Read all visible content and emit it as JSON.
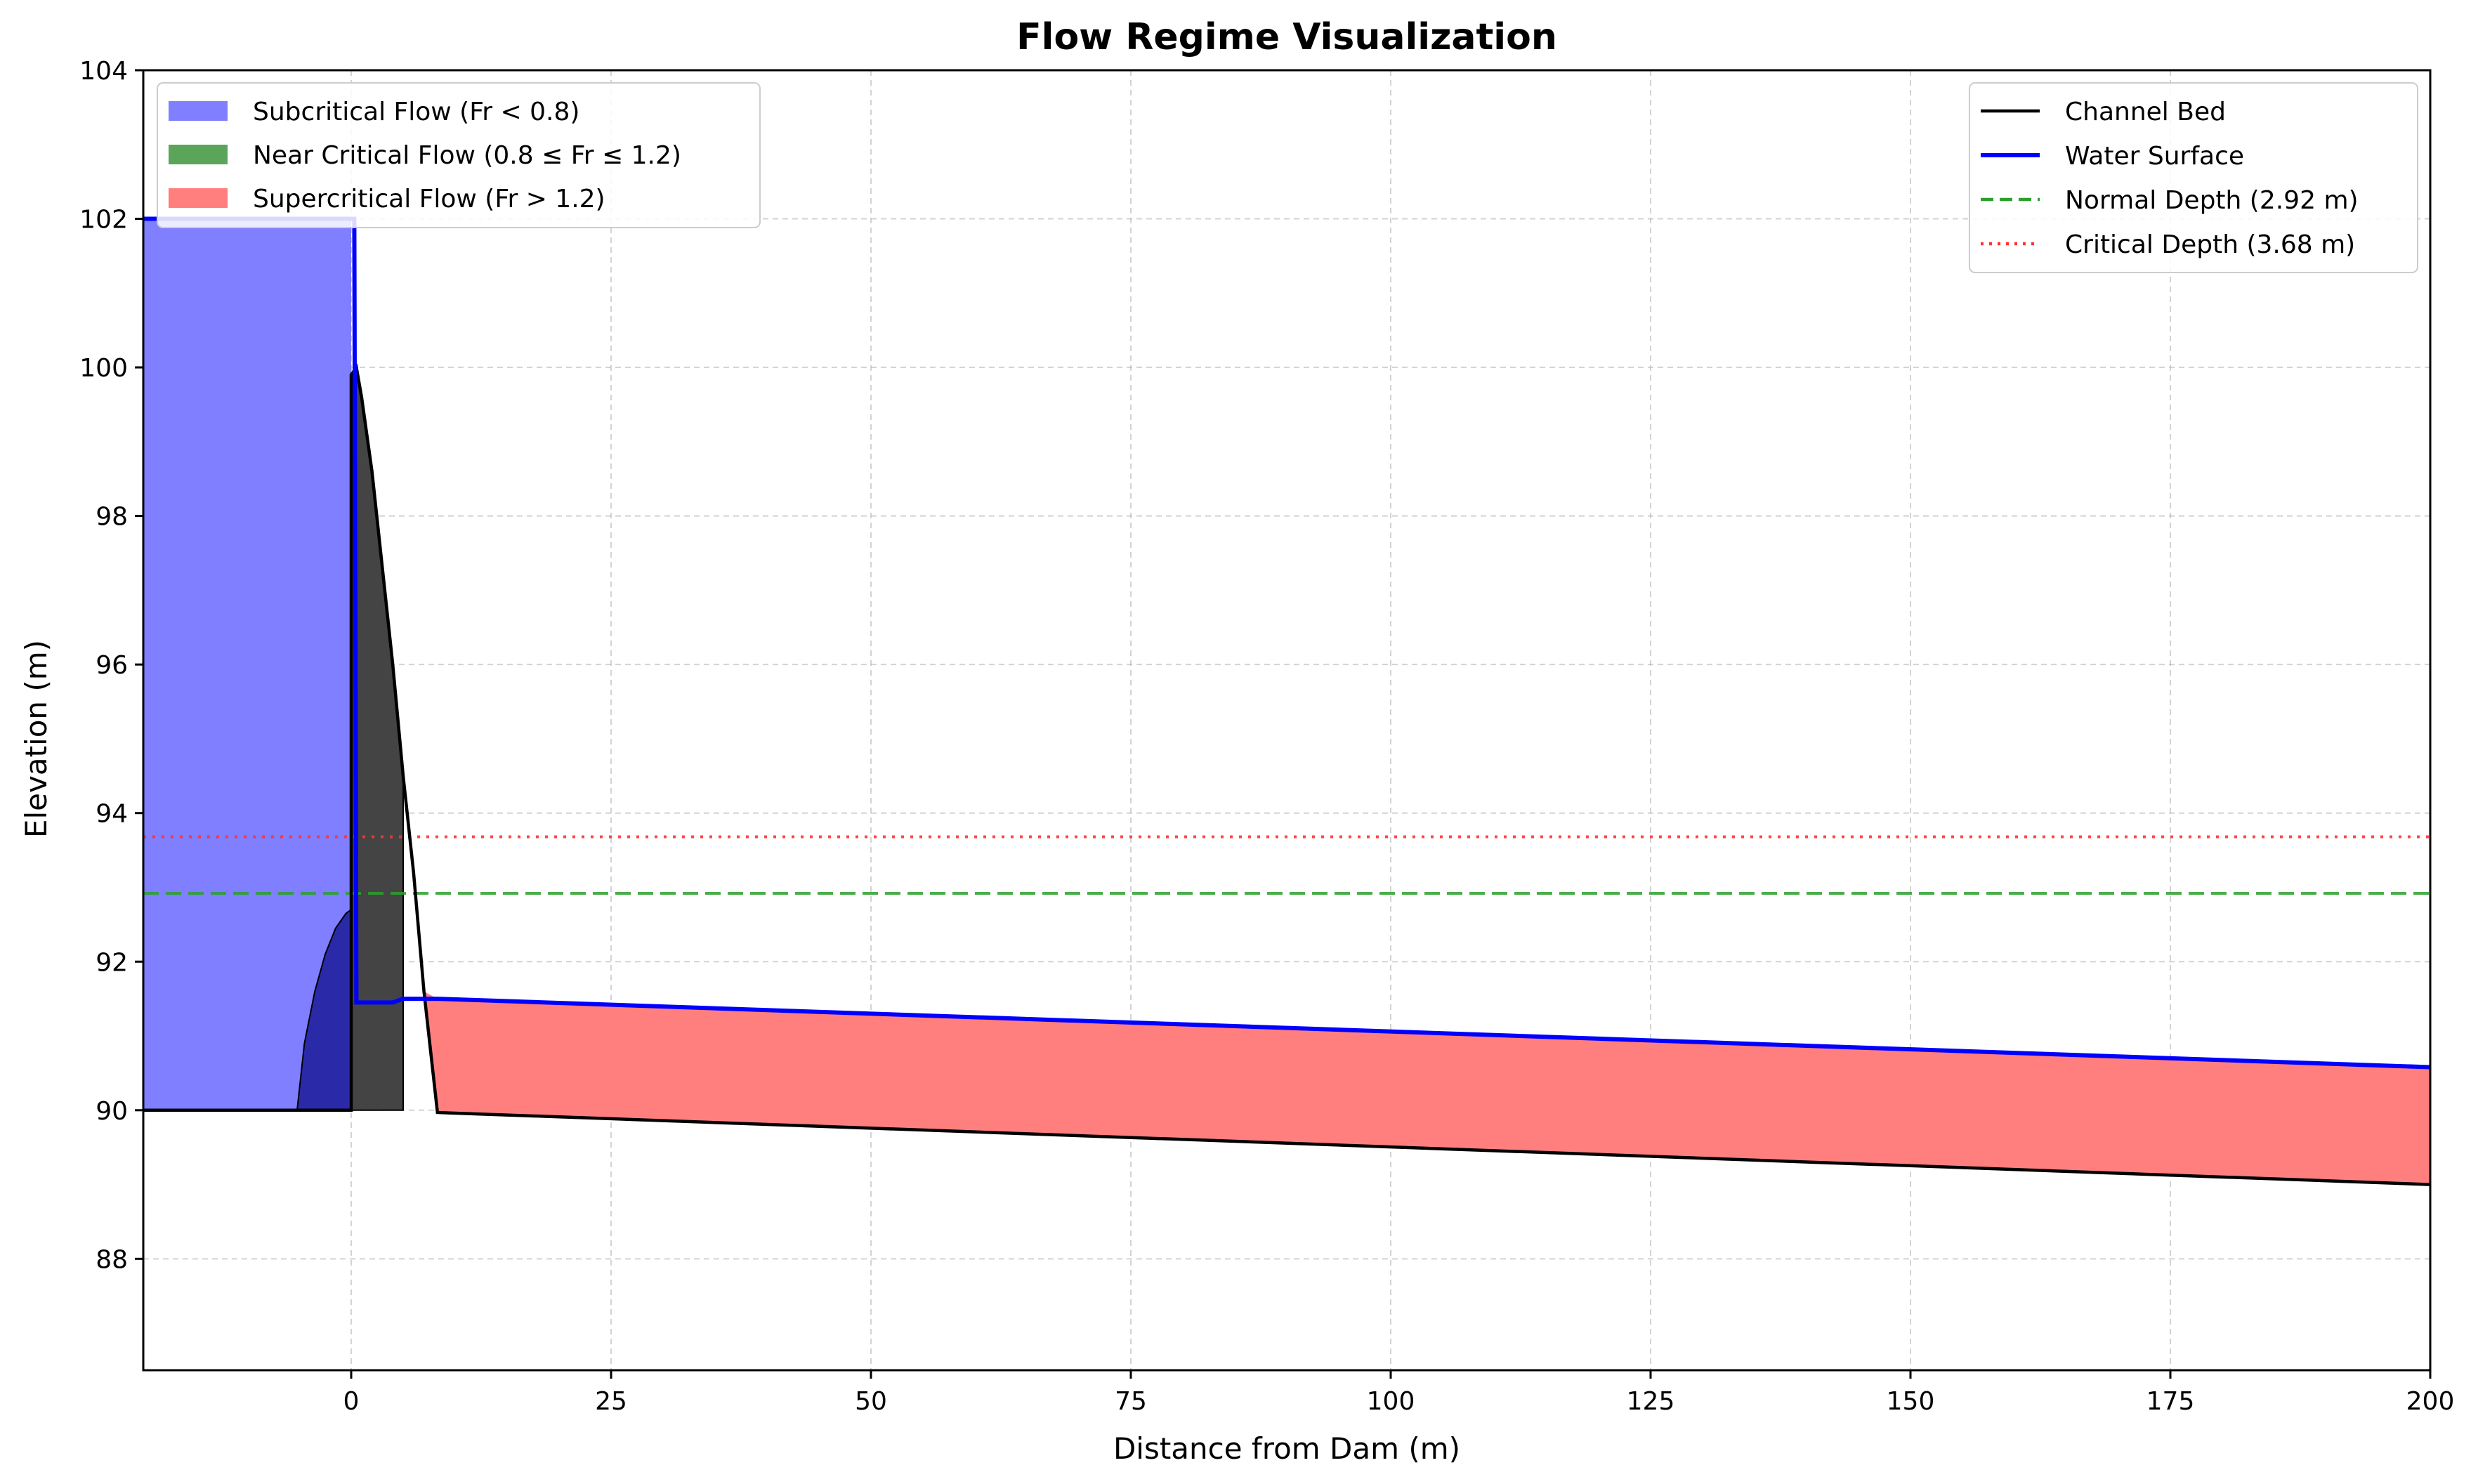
{
  "chart_data": {
    "type": "area",
    "title": "Flow Regime Visualization",
    "xlabel": "Distance from Dam (m)",
    "ylabel": "Elevation (m)",
    "xlim": [
      -20,
      200
    ],
    "ylim": [
      86.5,
      104
    ],
    "x_ticks": [
      0,
      25,
      50,
      75,
      100,
      125,
      150,
      175,
      200
    ],
    "y_ticks": [
      88,
      90,
      92,
      94,
      96,
      98,
      100,
      102,
      104
    ],
    "grid": true,
    "colors": {
      "subcritical": "#7f7fff",
      "near_critical": "#5aa55a",
      "supercritical": "#ff7f7f",
      "bed": "#000000",
      "water": "#0000ff",
      "normal_depth": "#2ca02c",
      "critical_depth": "#ff3333",
      "dam_fill": "#444444",
      "apron_fill": "#2a2aa8"
    },
    "legend_left": {
      "placement": "top-left",
      "entries": [
        {
          "label": "Subcritical Flow (Fr < 0.8)",
          "color": "#7f7fff"
        },
        {
          "label": "Near Critical Flow (0.8 ≤ Fr ≤ 1.2)",
          "color": "#5aa55a"
        },
        {
          "label": "Supercritical Flow (Fr > 1.2)",
          "color": "#ff7f7f"
        }
      ]
    },
    "legend_right": {
      "placement": "top-right",
      "entries": [
        {
          "label": "Channel Bed",
          "style": "solid",
          "color": "#000000"
        },
        {
          "label": "Water Surface",
          "style": "solid",
          "color": "#0000ff"
        },
        {
          "label": "Normal Depth (2.92 m)",
          "style": "dashed",
          "color": "#2ca02c"
        },
        {
          "label": "Critical Depth (3.68 m)",
          "style": "dotted",
          "color": "#ff3333"
        }
      ]
    },
    "normal_depth_elevation": 92.92,
    "critical_depth_elevation": 93.68,
    "channel_bed": {
      "x": [
        -20,
        0,
        0,
        0.5,
        1,
        2,
        3,
        4,
        5,
        6,
        7,
        8.3,
        200
      ],
      "y": [
        90,
        90,
        99.9,
        100,
        99.6,
        98.6,
        97.3,
        96.0,
        94.5,
        93.2,
        91.6,
        89.97,
        89.0
      ]
    },
    "water_surface": {
      "x": [
        -20,
        0,
        0.3,
        0.5,
        1,
        2,
        3,
        4,
        5,
        7,
        8.3,
        200
      ],
      "y": [
        102,
        102,
        102,
        91.45,
        91.45,
        91.45,
        91.45,
        91.45,
        91.5,
        91.5,
        91.5,
        90.58
      ]
    },
    "dam_body": {
      "x": [
        0,
        0.5,
        1,
        2,
        3,
        4,
        5,
        5,
        0
      ],
      "y": [
        99.9,
        100,
        99.6,
        98.6,
        97.3,
        96.0,
        94.5,
        90,
        90
      ]
    },
    "apron_mound": {
      "x": [
        -5.2,
        -4.5,
        -3.5,
        -2.5,
        -1.5,
        -0.5,
        0,
        0
      ],
      "y": [
        90,
        90.9,
        91.6,
        92.1,
        92.45,
        92.65,
        92.7,
        90
      ]
    },
    "subcritical_region": {
      "x": [
        -20,
        0,
        0,
        -20
      ],
      "y": [
        102,
        102,
        90,
        90
      ]
    },
    "supercritical_region": {
      "upper_x": [
        5,
        7,
        8.3,
        200
      ],
      "upper_y": [
        94.5,
        91.6,
        91.5,
        90.58
      ],
      "lower_x": [
        200,
        8.3,
        7,
        5
      ],
      "lower_y": [
        89.0,
        89.97,
        91.6,
        94.5
      ]
    }
  }
}
